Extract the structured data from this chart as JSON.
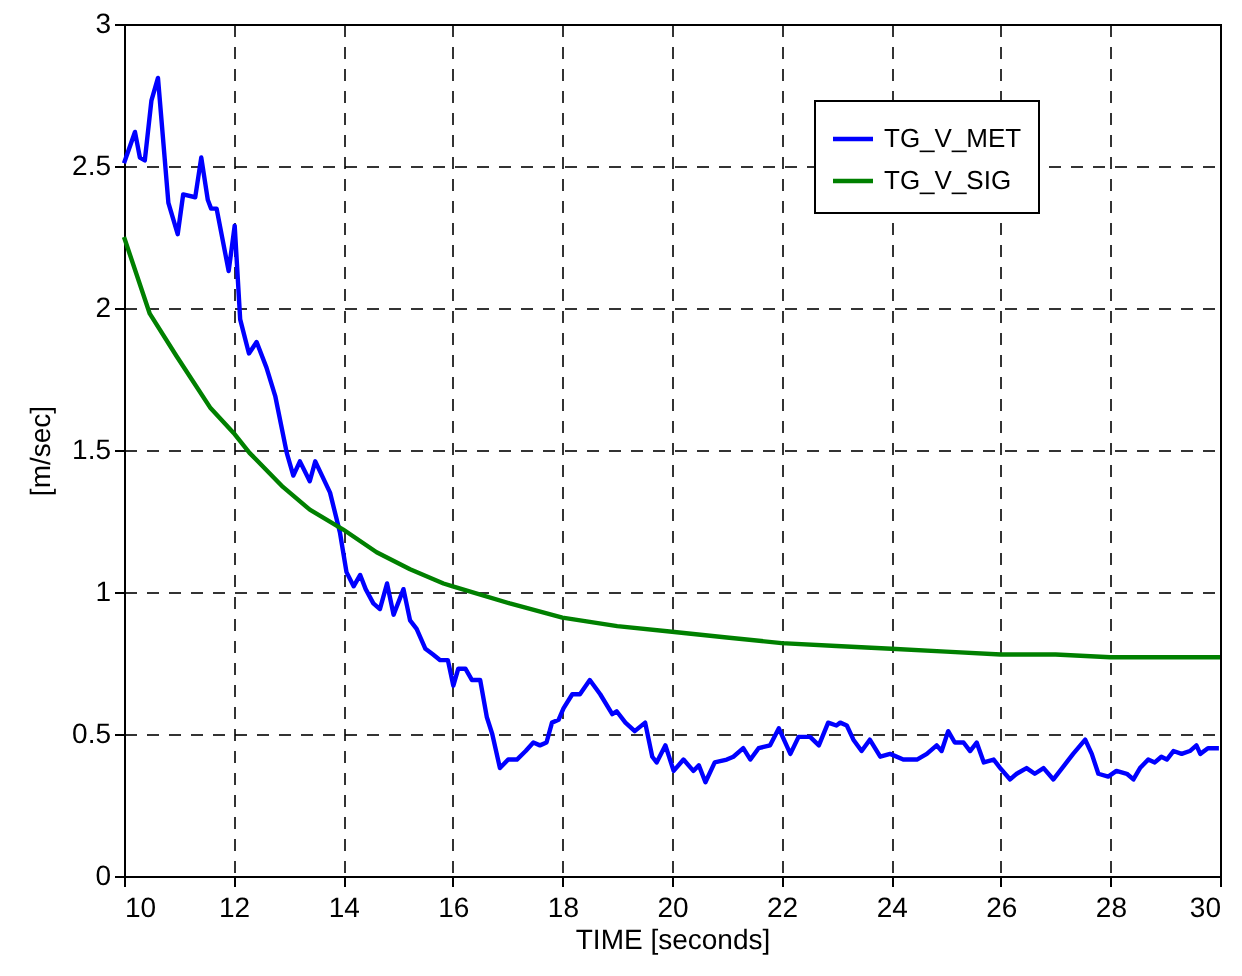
{
  "chart_data": {
    "type": "line",
    "xlabel": "TIME [seconds]",
    "ylabel": "[m/sec]",
    "xlim": [
      10,
      30
    ],
    "ylim": [
      0,
      3
    ],
    "xticks": [
      10,
      12,
      14,
      16,
      18,
      20,
      22,
      24,
      26,
      28,
      30
    ],
    "yticks": [
      0,
      0.5,
      1,
      1.5,
      2,
      2.5,
      3
    ],
    "grid": true,
    "legend": "top right",
    "series": [
      {
        "name": "TG_V_MET",
        "color": "#0000ff",
        "x": [
          10,
          10.2,
          10.29,
          10.38,
          10.5,
          10.62,
          10.81,
          10.98,
          11.08,
          11.3,
          11.41,
          11.53,
          11.59,
          11.69,
          11.91,
          12.02,
          12.12,
          12.28,
          12.42,
          12.6,
          12.76,
          12.97,
          13.09,
          13.21,
          13.39,
          13.49,
          13.76,
          13.94,
          14.06,
          14.19,
          14.31,
          14.41,
          14.55,
          14.67,
          14.8,
          14.92,
          15.1,
          15.22,
          15.34,
          15.5,
          15.64,
          15.77,
          15.91,
          16.01,
          16.1,
          16.23,
          16.35,
          16.5,
          16.62,
          16.72,
          16.86,
          17.01,
          17.17,
          17.33,
          17.47,
          17.59,
          17.71,
          17.81,
          17.93,
          18.02,
          18.18,
          18.32,
          18.5,
          18.69,
          18.91,
          18.99,
          19.15,
          19.32,
          19.51,
          19.64,
          19.72,
          19.88,
          20.03,
          20.21,
          20.39,
          20.49,
          20.61,
          20.78,
          21,
          21.12,
          21.3,
          21.43,
          21.58,
          21.79,
          21.95,
          22.16,
          22.31,
          22.52,
          22.68,
          22.85,
          23,
          23.07,
          23.19,
          23.31,
          23.46,
          23.61,
          23.8,
          23.98,
          24.22,
          24.47,
          24.65,
          24.83,
          24.92,
          25.04,
          25.16,
          25.32,
          25.44,
          25.56,
          25.69,
          25.87,
          25.99,
          26.17,
          26.29,
          26.47,
          26.62,
          26.78,
          26.96,
          27.2,
          27.32,
          27.54,
          27.66,
          27.78,
          27.96,
          28.11,
          28.3,
          28.42,
          28.54,
          28.69,
          28.81,
          28.93,
          29.03,
          29.15,
          29.3,
          29.45,
          29.57,
          29.64,
          29.78,
          29.98
        ],
        "values": [
          2.51,
          2.62,
          2.53,
          2.52,
          2.73,
          2.81,
          2.37,
          2.26,
          2.4,
          2.39,
          2.53,
          2.38,
          2.35,
          2.35,
          2.13,
          2.29,
          1.96,
          1.84,
          1.88,
          1.79,
          1.69,
          1.49,
          1.41,
          1.46,
          1.39,
          1.46,
          1.35,
          1.21,
          1.07,
          1.02,
          1.06,
          1.01,
          0.96,
          0.94,
          1.03,
          0.92,
          1.01,
          0.9,
          0.87,
          0.8,
          0.78,
          0.76,
          0.76,
          0.67,
          0.73,
          0.73,
          0.69,
          0.69,
          0.56,
          0.5,
          0.38,
          0.41,
          0.41,
          0.44,
          0.47,
          0.46,
          0.47,
          0.54,
          0.55,
          0.59,
          0.64,
          0.64,
          0.69,
          0.64,
          0.57,
          0.58,
          0.54,
          0.51,
          0.54,
          0.42,
          0.4,
          0.46,
          0.37,
          0.41,
          0.37,
          0.39,
          0.33,
          0.4,
          0.41,
          0.42,
          0.45,
          0.41,
          0.45,
          0.46,
          0.52,
          0.43,
          0.49,
          0.49,
          0.46,
          0.54,
          0.53,
          0.54,
          0.53,
          0.48,
          0.44,
          0.48,
          0.42,
          0.43,
          0.41,
          0.41,
          0.43,
          0.46,
          0.44,
          0.51,
          0.47,
          0.47,
          0.44,
          0.47,
          0.4,
          0.41,
          0.38,
          0.34,
          0.36,
          0.38,
          0.36,
          0.38,
          0.34,
          0.4,
          0.43,
          0.48,
          0.43,
          0.36,
          0.35,
          0.37,
          0.36,
          0.34,
          0.38,
          0.41,
          0.4,
          0.42,
          0.41,
          0.44,
          0.43,
          0.44,
          0.46,
          0.43,
          0.45,
          0.45
        ]
      },
      {
        "name": "TG_V_SIG",
        "color": "#008000",
        "x": [
          10,
          10.47,
          10.96,
          11.57,
          12,
          12.29,
          12.9,
          13.39,
          14,
          14.61,
          15.22,
          15.83,
          16,
          17.04,
          18,
          19,
          20,
          21,
          22,
          23,
          24,
          25,
          26,
          27,
          28,
          29,
          30
        ],
        "values": [
          2.25,
          1.98,
          1.83,
          1.65,
          1.56,
          1.49,
          1.37,
          1.29,
          1.22,
          1.14,
          1.08,
          1.03,
          1.02,
          0.96,
          0.91,
          0.88,
          0.86,
          0.84,
          0.82,
          0.81,
          0.8,
          0.79,
          0.78,
          0.78,
          0.77,
          0.77,
          0.77
        ]
      }
    ]
  }
}
